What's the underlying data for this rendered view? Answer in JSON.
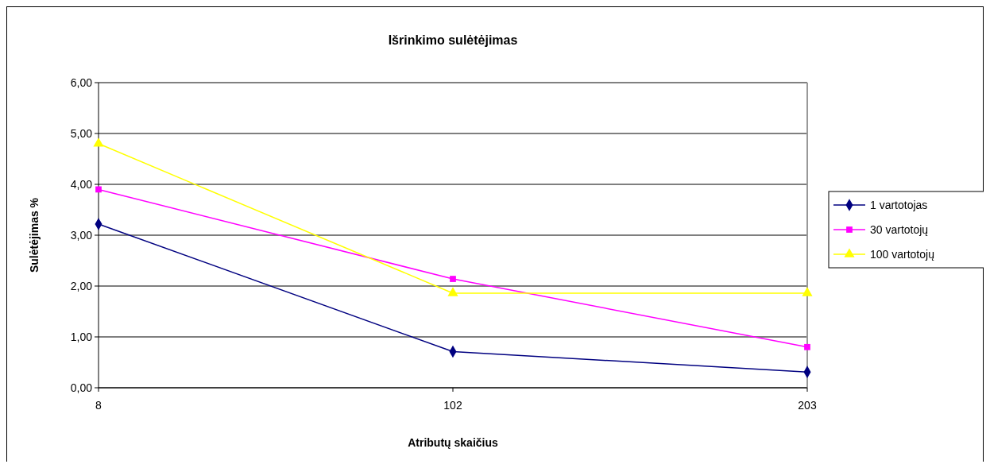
{
  "chart_data": {
    "type": "line",
    "title": "Išrinkimo sulėtėjimas",
    "xlabel": "Atributų skaičius",
    "ylabel": "Sulėtėjimas %",
    "categories": [
      "8",
      "102",
      "203"
    ],
    "series": [
      {
        "name": "1 vartotojas",
        "color": "#000080",
        "marker": "diamond",
        "values": [
          3.22,
          0.71,
          0.31
        ]
      },
      {
        "name": "30 vartotojų",
        "color": "#ff00ff",
        "marker": "square",
        "values": [
          3.9,
          2.14,
          0.8
        ]
      },
      {
        "name": "100 vartotojų",
        "color": "#ffff00",
        "marker": "triangle",
        "values": [
          4.8,
          1.86,
          1.86
        ]
      }
    ],
    "ylim": [
      0,
      6
    ],
    "yticks": [
      {
        "value": 0,
        "label": "0,00"
      },
      {
        "value": 1,
        "label": "1,00"
      },
      {
        "value": 2,
        "label": "2,00"
      },
      {
        "value": 3,
        "label": "3,00"
      },
      {
        "value": 4,
        "label": "4,00"
      },
      {
        "value": 5,
        "label": "5,00"
      },
      {
        "value": 6,
        "label": "6,00"
      }
    ],
    "grid": "y",
    "legend": "right"
  }
}
